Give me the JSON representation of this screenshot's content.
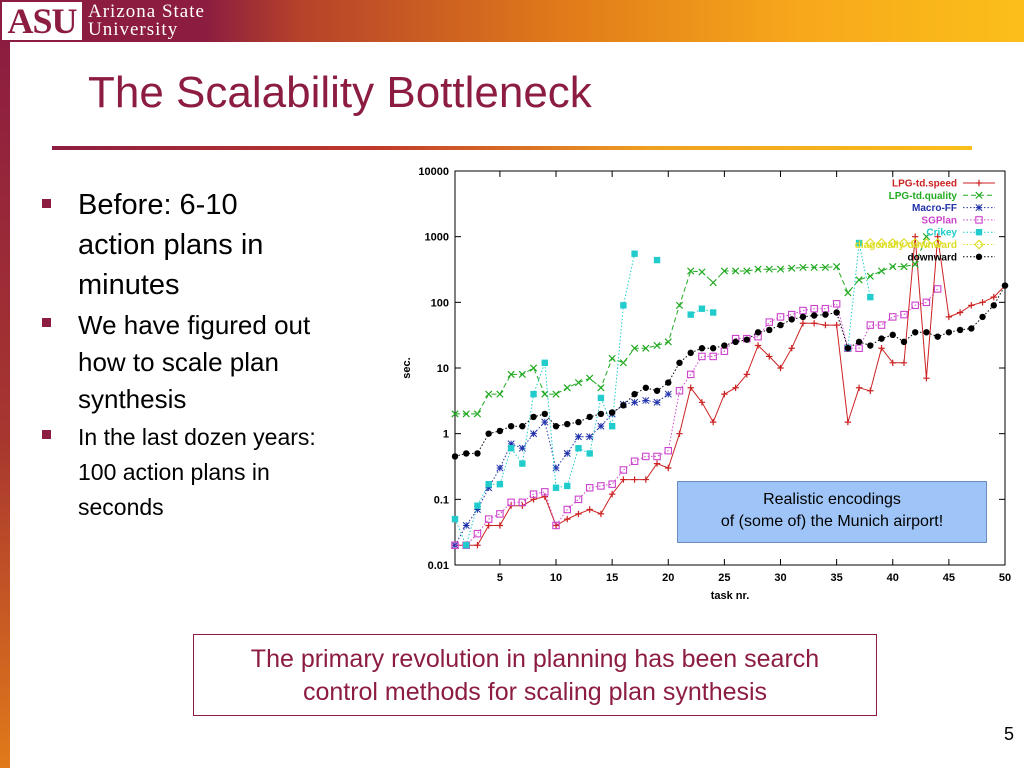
{
  "header": {
    "logo_text": "ASU",
    "university_line_1": "Arizona State",
    "university_line_2": "University",
    "brand_color": "#8c1d40",
    "accent_color": "#f7a81b"
  },
  "slide": {
    "title": "The Scalability Bottleneck",
    "bullets": [
      "Before: 6-10 action plans in minutes",
      "We have figured out how to scale plan synthesis",
      "In the last dozen years: 100 action plans in seconds"
    ],
    "callout_line_1": "Realistic encodings",
    "callout_line_2": "of (some of) the Munich airport!",
    "conclusion_line_1": "The primary revolution in planning has been search",
    "conclusion_line_2": "control methods for scaling plan synthesis",
    "page_number": "5"
  },
  "chart_data": {
    "type": "scatter",
    "title": "",
    "xlabel": "task nr.",
    "ylabel": "sec.",
    "x_range": [
      1,
      50
    ],
    "y_range": [
      0.01,
      10000
    ],
    "y_scale": "log",
    "x_ticks": [
      5,
      10,
      15,
      20,
      25,
      30,
      35,
      40,
      45,
      50
    ],
    "y_ticks": [
      0.01,
      0.1,
      1,
      10,
      100,
      1000,
      10000
    ],
    "y_tick_labels": [
      "0.01",
      "0.1",
      "1",
      "10",
      "100",
      "1000",
      "10000"
    ],
    "grid": false,
    "legend_position": "top-right",
    "series": [
      {
        "name": "LPG-td.speed",
        "color": "#cc2222",
        "marker": "plus",
        "line": "solid",
        "x": [
          1,
          2,
          3,
          4,
          5,
          6,
          7,
          8,
          9,
          10,
          11,
          12,
          13,
          14,
          15,
          16,
          17,
          18,
          19,
          20,
          21,
          22,
          23,
          24,
          25,
          26,
          27,
          28,
          29,
          30,
          31,
          32,
          33,
          34,
          35,
          36,
          37,
          38,
          39,
          40,
          41,
          42,
          43,
          44,
          45,
          46,
          47,
          48,
          49,
          50
        ],
        "y": [
          0.02,
          0.02,
          0.02,
          0.04,
          0.04,
          0.08,
          0.08,
          0.1,
          0.11,
          0.04,
          0.05,
          0.06,
          0.07,
          0.06,
          0.12,
          0.2,
          0.2,
          0.2,
          0.35,
          0.3,
          1,
          5,
          3,
          1.5,
          4,
          5,
          8,
          22,
          15,
          10,
          20,
          48,
          48,
          45,
          45,
          1.5,
          5,
          4.5,
          20,
          12,
          12,
          1000,
          7,
          1000,
          60,
          70,
          90,
          100,
          120,
          180
        ]
      },
      {
        "name": "LPG-td.quality",
        "color": "#22aa22",
        "marker": "x",
        "line": "dashed",
        "x": [
          1,
          2,
          3,
          4,
          5,
          6,
          7,
          8,
          9,
          10,
          11,
          12,
          13,
          14,
          15,
          16,
          17,
          18,
          19,
          20,
          21,
          22,
          23,
          24,
          25,
          26,
          27,
          28,
          29,
          30,
          31,
          32,
          33,
          34,
          35,
          36,
          37,
          38,
          39,
          40,
          41,
          42,
          43
        ],
        "y": [
          2,
          2,
          2,
          4,
          4,
          8,
          8,
          10,
          4,
          4,
          5,
          6,
          7,
          5,
          14,
          12,
          20,
          20,
          22,
          25,
          90,
          300,
          290,
          200,
          300,
          300,
          300,
          320,
          320,
          320,
          330,
          340,
          340,
          340,
          350,
          140,
          220,
          250,
          300,
          350,
          350,
          380,
          1000
        ]
      },
      {
        "name": "Macro-FF",
        "color": "#2233aa",
        "marker": "asterisk",
        "line": "dotted",
        "x": [
          1,
          2,
          3,
          4,
          5,
          6,
          7,
          8,
          9,
          10,
          11,
          12,
          13,
          14,
          15,
          16,
          17,
          18,
          19,
          20
        ],
        "y": [
          0.02,
          0.04,
          0.07,
          0.15,
          0.3,
          0.7,
          0.6,
          1,
          1.5,
          0.3,
          0.5,
          0.9,
          0.9,
          1.3,
          2,
          2.8,
          3,
          3.2,
          3,
          4
        ]
      },
      {
        "name": "SGPlan",
        "color": "#cc44cc",
        "marker": "square-open",
        "line": "dotted",
        "x": [
          1,
          2,
          3,
          4,
          5,
          6,
          7,
          8,
          9,
          10,
          11,
          12,
          13,
          14,
          15,
          16,
          17,
          18,
          19,
          20,
          21,
          22,
          23,
          24,
          25,
          26,
          27,
          28,
          29,
          30,
          31,
          32,
          33,
          34,
          35,
          36,
          37,
          38,
          39,
          40,
          41,
          42,
          43,
          44
        ],
        "y": [
          0.02,
          0.02,
          0.03,
          0.05,
          0.06,
          0.09,
          0.09,
          0.12,
          0.13,
          0.04,
          0.07,
          0.1,
          0.15,
          0.16,
          0.17,
          0.28,
          0.38,
          0.45,
          0.45,
          0.55,
          4.5,
          8,
          15,
          15,
          18,
          28,
          28,
          30,
          50,
          60,
          65,
          75,
          80,
          80,
          95,
          20,
          20,
          45,
          45,
          60,
          65,
          90,
          100,
          160
        ]
      },
      {
        "name": "Crikey",
        "color": "#22cccc",
        "marker": "square-filled",
        "line": "dotted",
        "x": [
          1,
          2,
          3,
          4,
          5,
          6,
          7,
          8,
          9,
          10,
          11,
          12,
          13,
          14,
          15,
          16,
          17,
          18,
          19,
          20,
          21,
          22,
          23,
          24,
          25,
          26,
          27,
          28,
          29,
          30,
          31,
          32,
          33,
          34,
          35,
          36,
          37,
          38
        ],
        "y": [
          0.05,
          0.02,
          0.08,
          0.17,
          0.17,
          0.6,
          0.35,
          4,
          12,
          0.15,
          0.16,
          0.6,
          0.5,
          3.5,
          1.3,
          90,
          550,
          null,
          440,
          null,
          null,
          65,
          80,
          70,
          null,
          null,
          null,
          null,
          null,
          null,
          null,
          null,
          null,
          null,
          null,
          20,
          800,
          120
        ]
      },
      {
        "name": "diagonally-downward",
        "color": "#dddd22",
        "marker": "diamond-open",
        "line": "dotted",
        "x": [
          38,
          39,
          40,
          41,
          42,
          43,
          44
        ],
        "y": [
          800,
          800,
          800,
          800,
          800,
          800,
          800
        ]
      },
      {
        "name": "downward",
        "color": "#000000",
        "marker": "circle-filled",
        "line": "dotted",
        "x": [
          1,
          2,
          3,
          4,
          5,
          6,
          7,
          8,
          9,
          10,
          11,
          12,
          13,
          14,
          15,
          16,
          17,
          18,
          19,
          20,
          21,
          22,
          23,
          24,
          25,
          26,
          27,
          28,
          29,
          30,
          31,
          32,
          33,
          34,
          35,
          36,
          37,
          38,
          39,
          40,
          41,
          42,
          43,
          44,
          45,
          46,
          47,
          48,
          49,
          50
        ],
        "y": [
          0.45,
          0.5,
          0.5,
          1,
          1.1,
          1.3,
          1.3,
          1.8,
          2,
          1.3,
          1.4,
          1.5,
          1.8,
          2,
          2.1,
          2.7,
          4,
          5,
          4.5,
          6,
          12,
          17,
          20,
          20,
          22,
          25,
          27,
          35,
          38,
          45,
          55,
          60,
          63,
          65,
          70,
          20,
          25,
          22,
          28,
          32,
          25,
          35,
          35,
          30,
          35,
          38,
          40,
          60,
          90,
          180
        ]
      }
    ]
  }
}
